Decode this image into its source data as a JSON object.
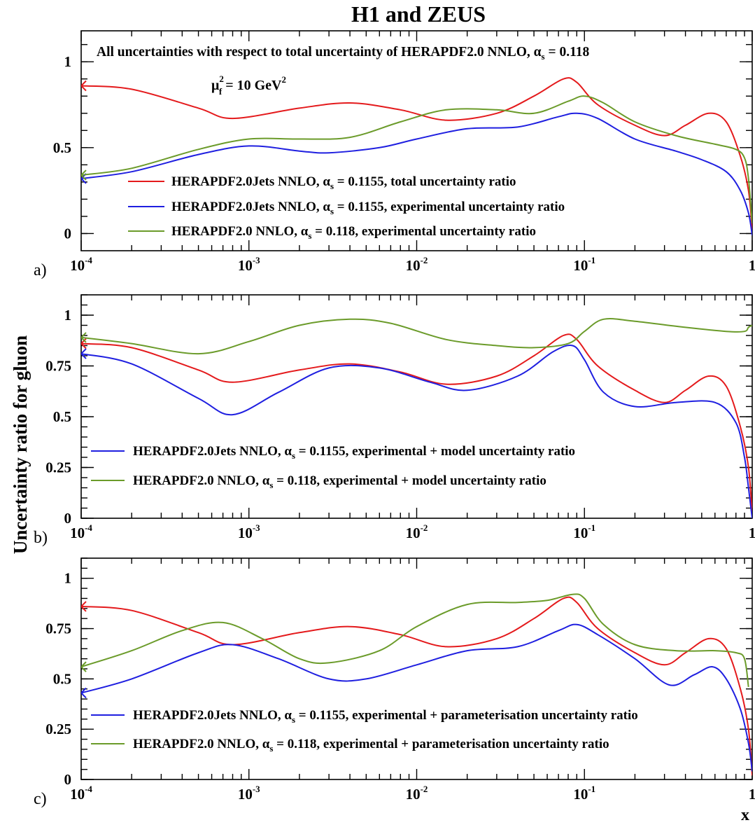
{
  "title": "H1 and ZEUS",
  "ylabel": "Uncertainty ratio for gluon",
  "xlabel": "x",
  "colors": {
    "total": "#e41a1c",
    "jets": "#1f1fe0",
    "herapdf": "#6b9b2a"
  },
  "x_tick_labels": [
    {
      "base": "10",
      "exp": "-4"
    },
    {
      "base": "10",
      "exp": "-3"
    },
    {
      "base": "10",
      "exp": "-2"
    },
    {
      "base": "10",
      "exp": "-1"
    },
    {
      "base": "1",
      "exp": ""
    }
  ],
  "chart_data": [
    {
      "type": "line",
      "panel_label": "a)",
      "annotation": {
        "main": "All uncertainties with respect to total uncertainty of  HERAPDF2.0 NNLO, α",
        "main_sub": "s",
        "main_tail": " = 0.118",
        "scale_mu": "μ",
        "scale_sup": "2",
        "scale_sub": "f",
        "scale_tail": " = 10 GeV",
        "scale_unit_sup": "2"
      },
      "x_scale": "log",
      "xlim": [
        0.0001,
        1
      ],
      "ylim": [
        -0.1,
        1.18
      ],
      "y_ticks": [
        0,
        0.5,
        1
      ],
      "y_tick_labels": [
        "0",
        "0.5",
        "1"
      ],
      "legend_placement": "lower-left",
      "series": [
        {
          "name_pre": "HERAPDF2.0Jets NNLO, α",
          "name_sub": "s",
          "name_post": " = 0.1155, total uncertainty ratio",
          "color_key": "total",
          "x": [
            0.0001,
            0.0002,
            0.0005,
            0.0008,
            0.002,
            0.004,
            0.008,
            0.015,
            0.03,
            0.05,
            0.075,
            0.09,
            0.12,
            0.2,
            0.3,
            0.4,
            0.55,
            0.7,
            0.85,
            0.95,
            1.0
          ],
          "y": [
            0.86,
            0.84,
            0.73,
            0.67,
            0.73,
            0.76,
            0.72,
            0.66,
            0.7,
            0.8,
            0.9,
            0.88,
            0.75,
            0.63,
            0.57,
            0.63,
            0.7,
            0.65,
            0.45,
            0.25,
            0.02
          ]
        },
        {
          "name_pre": "HERAPDF2.0Jets NNLO, α",
          "name_sub": "s",
          "name_post": " = 0.1155, experimental uncertainty ratio",
          "color_key": "jets",
          "x": [
            0.0001,
            0.0002,
            0.0005,
            0.001,
            0.002,
            0.003,
            0.006,
            0.01,
            0.02,
            0.04,
            0.07,
            0.09,
            0.12,
            0.2,
            0.35,
            0.5,
            0.7,
            0.85,
            0.95,
            1.0
          ],
          "y": [
            0.32,
            0.36,
            0.46,
            0.51,
            0.48,
            0.47,
            0.5,
            0.55,
            0.61,
            0.62,
            0.68,
            0.7,
            0.67,
            0.55,
            0.48,
            0.43,
            0.36,
            0.25,
            0.12,
            -0.01
          ]
        },
        {
          "name_pre": "HERAPDF2.0 NNLO, α",
          "name_sub": "s",
          "name_post": " = 0.118, experimental uncertainty ratio",
          "color_key": "herapdf",
          "x": [
            0.0001,
            0.0002,
            0.0005,
            0.001,
            0.002,
            0.004,
            0.008,
            0.015,
            0.03,
            0.05,
            0.08,
            0.1,
            0.13,
            0.2,
            0.35,
            0.6,
            0.8,
            0.9,
            0.95,
            1.0
          ],
          "y": [
            0.34,
            0.38,
            0.49,
            0.55,
            0.55,
            0.56,
            0.65,
            0.72,
            0.72,
            0.7,
            0.77,
            0.8,
            0.76,
            0.65,
            0.57,
            0.52,
            0.49,
            0.44,
            0.32,
            0.06
          ]
        }
      ]
    },
    {
      "type": "line",
      "panel_label": "b)",
      "x_scale": "log",
      "xlim": [
        0.0001,
        1
      ],
      "ylim": [
        0,
        1.1
      ],
      "y_ticks": [
        0,
        0.25,
        0.5,
        0.75,
        1
      ],
      "y_tick_labels": [
        "0",
        "0.25",
        "0.5",
        "0.75",
        "1"
      ],
      "legend_placement": "lower-left",
      "series": [
        {
          "color_key": "total",
          "legend": false,
          "x": [
            0.0001,
            0.0002,
            0.0005,
            0.0008,
            0.002,
            0.004,
            0.008,
            0.015,
            0.03,
            0.05,
            0.075,
            0.09,
            0.12,
            0.2,
            0.3,
            0.4,
            0.55,
            0.7,
            0.85,
            0.95,
            1.0
          ],
          "y": [
            0.86,
            0.84,
            0.73,
            0.67,
            0.73,
            0.76,
            0.72,
            0.66,
            0.7,
            0.8,
            0.9,
            0.88,
            0.75,
            0.63,
            0.57,
            0.63,
            0.7,
            0.65,
            0.45,
            0.25,
            0.02
          ]
        },
        {
          "name_pre": "HERAPDF2.0Jets NNLO, α",
          "name_sub": "s",
          "name_post": " = 0.1155, experimental + model uncertainty ratio",
          "color_key": "jets",
          "x": [
            0.0001,
            0.0002,
            0.0005,
            0.0008,
            0.0015,
            0.003,
            0.006,
            0.012,
            0.02,
            0.04,
            0.065,
            0.085,
            0.1,
            0.13,
            0.2,
            0.35,
            0.6,
            0.8,
            0.9,
            0.95,
            1.0
          ],
          "y": [
            0.81,
            0.76,
            0.59,
            0.51,
            0.62,
            0.74,
            0.74,
            0.67,
            0.63,
            0.7,
            0.82,
            0.85,
            0.78,
            0.62,
            0.55,
            0.57,
            0.57,
            0.47,
            0.3,
            0.15,
            0.0
          ]
        },
        {
          "name_pre": "HERAPDF2.0 NNLO, α",
          "name_sub": "s",
          "name_post": " = 0.118, experimental + model uncertainty ratio",
          "color_key": "herapdf",
          "x": [
            0.0001,
            0.0002,
            0.0005,
            0.001,
            0.002,
            0.004,
            0.007,
            0.015,
            0.03,
            0.05,
            0.08,
            0.1,
            0.13,
            0.2,
            0.4,
            0.7,
            0.9,
            0.95,
            1.0
          ],
          "y": [
            0.89,
            0.86,
            0.81,
            0.87,
            0.95,
            0.98,
            0.96,
            0.88,
            0.85,
            0.84,
            0.86,
            0.92,
            0.98,
            0.97,
            0.94,
            0.92,
            0.92,
            0.94,
            0.95
          ]
        }
      ]
    },
    {
      "type": "line",
      "panel_label": "c)",
      "x_scale": "log",
      "xlim": [
        0.0001,
        1
      ],
      "ylim": [
        0,
        1.1
      ],
      "y_ticks": [
        0,
        0.25,
        0.5,
        0.75,
        1
      ],
      "y_tick_labels": [
        "0",
        "0.25",
        "0.5",
        "0.75",
        "1"
      ],
      "legend_placement": "lower-left",
      "series": [
        {
          "color_key": "total",
          "legend": false,
          "x": [
            0.0001,
            0.0002,
            0.0005,
            0.0008,
            0.002,
            0.004,
            0.008,
            0.015,
            0.03,
            0.05,
            0.075,
            0.09,
            0.12,
            0.2,
            0.3,
            0.4,
            0.55,
            0.7,
            0.85,
            0.95,
            1.0
          ],
          "y": [
            0.86,
            0.84,
            0.73,
            0.67,
            0.73,
            0.76,
            0.72,
            0.66,
            0.7,
            0.8,
            0.9,
            0.88,
            0.75,
            0.63,
            0.57,
            0.63,
            0.7,
            0.65,
            0.45,
            0.25,
            0.02
          ]
        },
        {
          "name_pre": "HERAPDF2.0Jets NNLO, α",
          "name_sub": "s",
          "name_post": " = 0.1155, experimental + parameterisation uncertainty ratio",
          "color_key": "jets",
          "x": [
            0.0001,
            0.0002,
            0.0005,
            0.0008,
            0.0015,
            0.003,
            0.005,
            0.01,
            0.02,
            0.04,
            0.07,
            0.09,
            0.12,
            0.2,
            0.32,
            0.45,
            0.58,
            0.7,
            0.85,
            0.95,
            1.0
          ],
          "y": [
            0.43,
            0.5,
            0.63,
            0.67,
            0.6,
            0.5,
            0.5,
            0.57,
            0.64,
            0.66,
            0.74,
            0.77,
            0.72,
            0.6,
            0.47,
            0.52,
            0.56,
            0.5,
            0.35,
            0.18,
            0.04
          ]
        },
        {
          "name_pre": "HERAPDF2.0 NNLO, α",
          "name_sub": "s",
          "name_post": " = 0.118, experimental + parameterisation uncertainty ratio",
          "color_key": "herapdf",
          "x": [
            0.0001,
            0.0002,
            0.0004,
            0.0007,
            0.0012,
            0.002,
            0.003,
            0.006,
            0.01,
            0.02,
            0.04,
            0.06,
            0.085,
            0.1,
            0.13,
            0.2,
            0.35,
            0.6,
            0.8,
            0.9,
            0.95
          ],
          "y": [
            0.56,
            0.64,
            0.74,
            0.78,
            0.7,
            0.6,
            0.58,
            0.64,
            0.76,
            0.87,
            0.88,
            0.89,
            0.92,
            0.9,
            0.77,
            0.67,
            0.64,
            0.64,
            0.63,
            0.6,
            0.46
          ]
        }
      ]
    }
  ]
}
